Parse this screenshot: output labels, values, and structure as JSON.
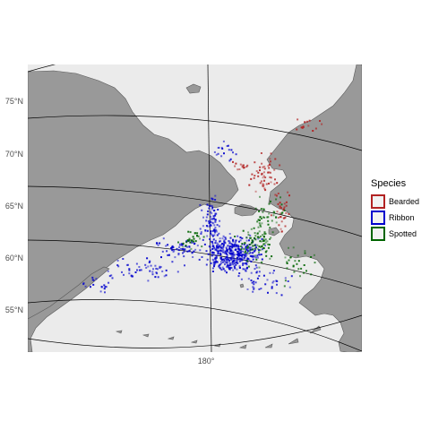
{
  "map": {
    "latitude_labels": [
      "75°N",
      "70°N",
      "65°N",
      "60°N",
      "55°N"
    ],
    "longitude_labels": [
      "180°"
    ],
    "colors": {
      "panel_background": "#ebebeb",
      "land": "#999999",
      "land_outline": "#5a5a5a",
      "graticule": "#000000",
      "axis_text": "#4d4d4d"
    }
  },
  "legend": {
    "title": "Species",
    "items": [
      {
        "label": "Bearded",
        "color": "#b22222",
        "icon": "outlined-square-icon"
      },
      {
        "label": "Ribbon",
        "color": "#0000cd",
        "icon": "outlined-square-icon"
      },
      {
        "label": "Spotted",
        "color": "#006400",
        "icon": "outlined-square-icon"
      }
    ]
  }
}
